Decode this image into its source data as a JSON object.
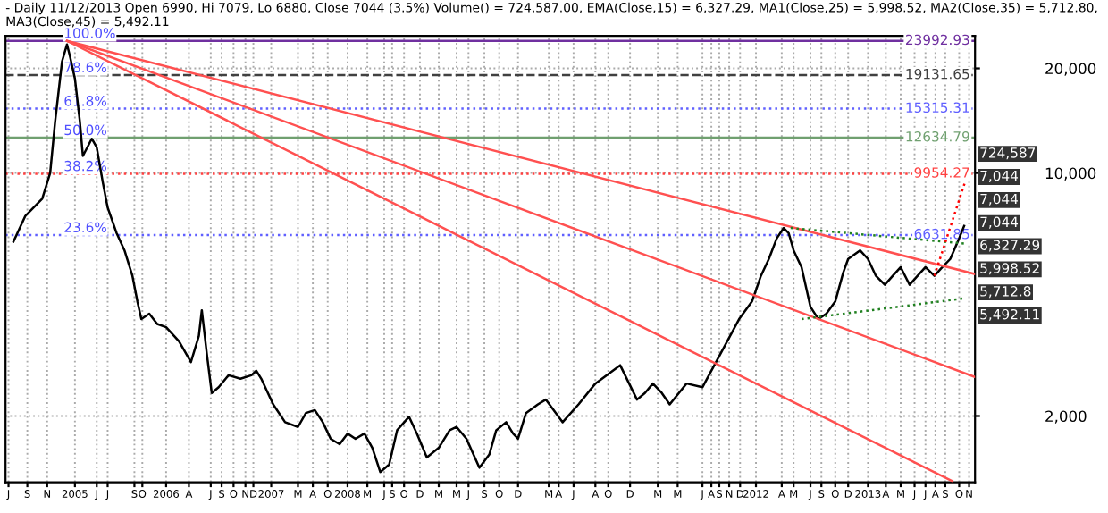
{
  "chart_data": {
    "type": "line",
    "title": "- Daily 11/12/2013 Open 6990, Hi 7079, Lo 6880, Close 7044 (3.5%) Volume() = 724,587.00, EMA(Close,15) = 6,327.29, MA1(Close,25) = 5,998.52, MA2(Close,35) = 5,712.80, MA3(Close,45) = 5,492.11",
    "log": "y",
    "grid": true,
    "tick_labels": "xy",
    "xlim": [
      2004.3,
      2014.08
    ],
    "ylim": [
      1290,
      24800
    ],
    "yticks": [
      {
        "value": 2000,
        "label": "2,000"
      },
      {
        "value": 10000,
        "label": "10,000"
      },
      {
        "value": 20000,
        "label": "20,000"
      }
    ],
    "xticks": [
      {
        "value": 2004.33,
        "label": "J"
      },
      {
        "value": 2004.52,
        "label": "S"
      },
      {
        "value": 2004.72,
        "label": "N"
      },
      {
        "value": 2005.0,
        "label": "2005"
      },
      {
        "value": 2005.22,
        "label": "J"
      },
      {
        "value": 2005.33,
        "label": "J"
      },
      {
        "value": 2005.6,
        "label": "S"
      },
      {
        "value": 2005.68,
        "label": "O"
      },
      {
        "value": 2005.92,
        "label": "2006"
      },
      {
        "value": 2006.15,
        "label": "A"
      },
      {
        "value": 2006.37,
        "label": "J"
      },
      {
        "value": 2006.48,
        "label": "S"
      },
      {
        "value": 2006.6,
        "label": "O"
      },
      {
        "value": 2006.72,
        "label": "N"
      },
      {
        "value": 2006.8,
        "label": "D"
      },
      {
        "value": 2006.98,
        "label": "2007"
      },
      {
        "value": 2007.25,
        "label": "M"
      },
      {
        "value": 2007.4,
        "label": "A"
      },
      {
        "value": 2007.55,
        "label": "O"
      },
      {
        "value": 2007.75,
        "label": "2008"
      },
      {
        "value": 2007.95,
        "label": "M"
      },
      {
        "value": 2008.12,
        "label": "J"
      },
      {
        "value": 2008.2,
        "label": "S"
      },
      {
        "value": 2008.32,
        "label": "O"
      },
      {
        "value": 2008.48,
        "label": "D"
      },
      {
        "value": 2008.67,
        "label": "M"
      },
      {
        "value": 2008.85,
        "label": "M"
      },
      {
        "value": 2008.97,
        "label": "J"
      },
      {
        "value": 2009.13,
        "label": "S"
      },
      {
        "value": 2009.28,
        "label": "O"
      },
      {
        "value": 2009.47,
        "label": "D"
      },
      {
        "value": 2009.78,
        "label": "M"
      },
      {
        "value": 2009.88,
        "label": "A"
      },
      {
        "value": 2010.03,
        "label": "J"
      },
      {
        "value": 2010.25,
        "label": "A"
      },
      {
        "value": 2010.38,
        "label": "O"
      },
      {
        "value": 2010.6,
        "label": "D"
      },
      {
        "value": 2010.88,
        "label": "M"
      },
      {
        "value": 2011.08,
        "label": "M"
      },
      {
        "value": 2011.33,
        "label": "J"
      },
      {
        "value": 2011.42,
        "label": "A"
      },
      {
        "value": 2011.5,
        "label": "S"
      },
      {
        "value": 2011.6,
        "label": "N"
      },
      {
        "value": 2011.71,
        "label": "D"
      },
      {
        "value": 2011.87,
        "label": "2012"
      },
      {
        "value": 2012.13,
        "label": "A"
      },
      {
        "value": 2012.25,
        "label": "M"
      },
      {
        "value": 2012.42,
        "label": "J"
      },
      {
        "value": 2012.53,
        "label": "S"
      },
      {
        "value": 2012.67,
        "label": "O"
      },
      {
        "value": 2012.8,
        "label": "D"
      },
      {
        "value": 2013.0,
        "label": "2013"
      },
      {
        "value": 2013.18,
        "label": "A"
      },
      {
        "value": 2013.33,
        "label": "M"
      },
      {
        "value": 2013.47,
        "label": "J"
      },
      {
        "value": 2013.58,
        "label": "J"
      },
      {
        "value": 2013.68,
        "label": "A"
      },
      {
        "value": 2013.78,
        "label": "S"
      },
      {
        "value": 2013.92,
        "label": "O"
      },
      {
        "value": 2014.02,
        "label": "N"
      }
    ],
    "ref_lines": [
      {
        "axis": "y",
        "value": 23992.93,
        "label": "23992.93",
        "color": "#7030a0",
        "line_style": "solid"
      },
      {
        "axis": "y",
        "value": 19131.65,
        "label": "19131.65",
        "color": "#404040",
        "line_style": "dashed"
      },
      {
        "axis": "y",
        "value": 15315.31,
        "label": "15315.31",
        "color": "#6060ff",
        "line_style": "dotted"
      },
      {
        "axis": "y",
        "value": 12634.79,
        "label": "12634.79",
        "color": "#70a070",
        "line_style": "solid"
      },
      {
        "axis": "y",
        "value": 9954.27,
        "label": "9954.27",
        "color": "#ff4040",
        "line_style": "dotted"
      },
      {
        "axis": "y",
        "value": 6631.85,
        "label": "6631.85",
        "color": "#6060ff",
        "line_style": "dotted"
      }
    ],
    "annotations": [
      "100.0%",
      "78.6%",
      "61.8%",
      "50.0%",
      "38.2%",
      "23.6%",
      "724,587",
      "7,044",
      "7,044",
      "7,044",
      "6,327.29",
      "5,998.52",
      "5,712.8",
      "5,492.11"
    ],
    "series": [
      {
        "color": "#000000",
        "line_style": "solid",
        "x": [
          2004.38,
          2004.5,
          2004.67,
          2004.75,
          2004.8,
          2004.87,
          2004.92,
          2004.95,
          2005.0,
          2005.05,
          2005.08,
          2005.17,
          2005.22,
          2005.28,
          2005.33,
          2005.42,
          2005.5,
          2005.58,
          2005.63,
          2005.67,
          2005.75,
          2005.83,
          2005.92,
          2006.05,
          2006.17,
          2006.25,
          2006.28,
          2006.33,
          2006.38,
          2006.45,
          2006.55,
          2006.67,
          2006.78,
          2006.83,
          2006.88,
          2007.0,
          2007.12,
          2007.25,
          2007.33,
          2007.42,
          2007.5,
          2007.58,
          2007.67,
          2007.75,
          2007.83,
          2007.92,
          2008.0,
          2008.08,
          2008.17,
          2008.25,
          2008.37,
          2008.45,
          2008.55,
          2008.67,
          2008.78,
          2008.85,
          2008.95,
          2009.08,
          2009.18,
          2009.25,
          2009.35,
          2009.42,
          2009.47,
          2009.55,
          2009.67,
          2009.75,
          2009.92,
          2010.08,
          2010.25,
          2010.5,
          2010.67,
          2010.75,
          2010.83,
          2010.92,
          2011.0,
          2011.17,
          2011.33,
          2011.45,
          2011.58,
          2011.7,
          2011.83,
          2011.92,
          2012.0,
          2012.08,
          2012.15,
          2012.2,
          2012.25,
          2012.33,
          2012.42,
          2012.5,
          2012.58,
          2012.67,
          2012.75,
          2012.8,
          2012.92,
          2013.0,
          2013.08,
          2013.17,
          2013.25,
          2013.33,
          2013.42,
          2013.5,
          2013.58,
          2013.67,
          2013.75,
          2013.83,
          2013.92,
          2013.97
        ],
        "values": [
          6350,
          7530,
          8430,
          10000,
          14060,
          20940,
          23440,
          21670,
          18670,
          14060,
          11200,
          12550,
          11850,
          9440,
          7960,
          6720,
          5990,
          5060,
          4270,
          3800,
          3940,
          3680,
          3600,
          3280,
          2860,
          3400,
          4030,
          3030,
          2330,
          2420,
          2620,
          2560,
          2620,
          2700,
          2560,
          2160,
          1920,
          1860,
          2040,
          2080,
          1920,
          1720,
          1660,
          1780,
          1720,
          1780,
          1620,
          1380,
          1450,
          1820,
          1990,
          1780,
          1520,
          1620,
          1820,
          1860,
          1720,
          1420,
          1550,
          1820,
          1920,
          1780,
          1720,
          2040,
          2160,
          2230,
          1920,
          2160,
          2480,
          2800,
          2230,
          2330,
          2480,
          2330,
          2160,
          2480,
          2420,
          2800,
          3280,
          3800,
          4270,
          5060,
          5660,
          6490,
          6950,
          6720,
          5990,
          5360,
          4120,
          3800,
          3940,
          4270,
          5170,
          5660,
          5990,
          5660,
          5060,
          4770,
          5060,
          5360,
          4770,
          5060,
          5360,
          5060,
          5360,
          5660,
          6490,
          7044
        ]
      },
      {
        "color": "#ff5050",
        "line_style": "solid",
        "x": [
          2004.92,
          2014.08
        ],
        "values": [
          23990,
          5120
        ]
      },
      {
        "color": "#ff5050",
        "line_style": "solid",
        "x": [
          2004.92,
          2014.08
        ],
        "values": [
          23990,
          2590
        ]
      },
      {
        "color": "#ff5050",
        "line_style": "solid",
        "x": [
          2004.92,
          2013.85
        ],
        "values": [
          23990,
          1300
        ]
      },
      {
        "color": "#208020",
        "line_style": "dotted",
        "x": [
          2012.22,
          2013.97
        ],
        "values": [
          6950,
          6270
        ]
      },
      {
        "color": "#208020",
        "line_style": "dotted",
        "x": [
          2012.33,
          2013.97
        ],
        "values": [
          3800,
          4360
        ]
      },
      {
        "color": "#ff0000",
        "line_style": "dotted",
        "x": [
          2013.67,
          2013.98
        ],
        "values": [
          5060,
          9440
        ]
      }
    ]
  }
}
